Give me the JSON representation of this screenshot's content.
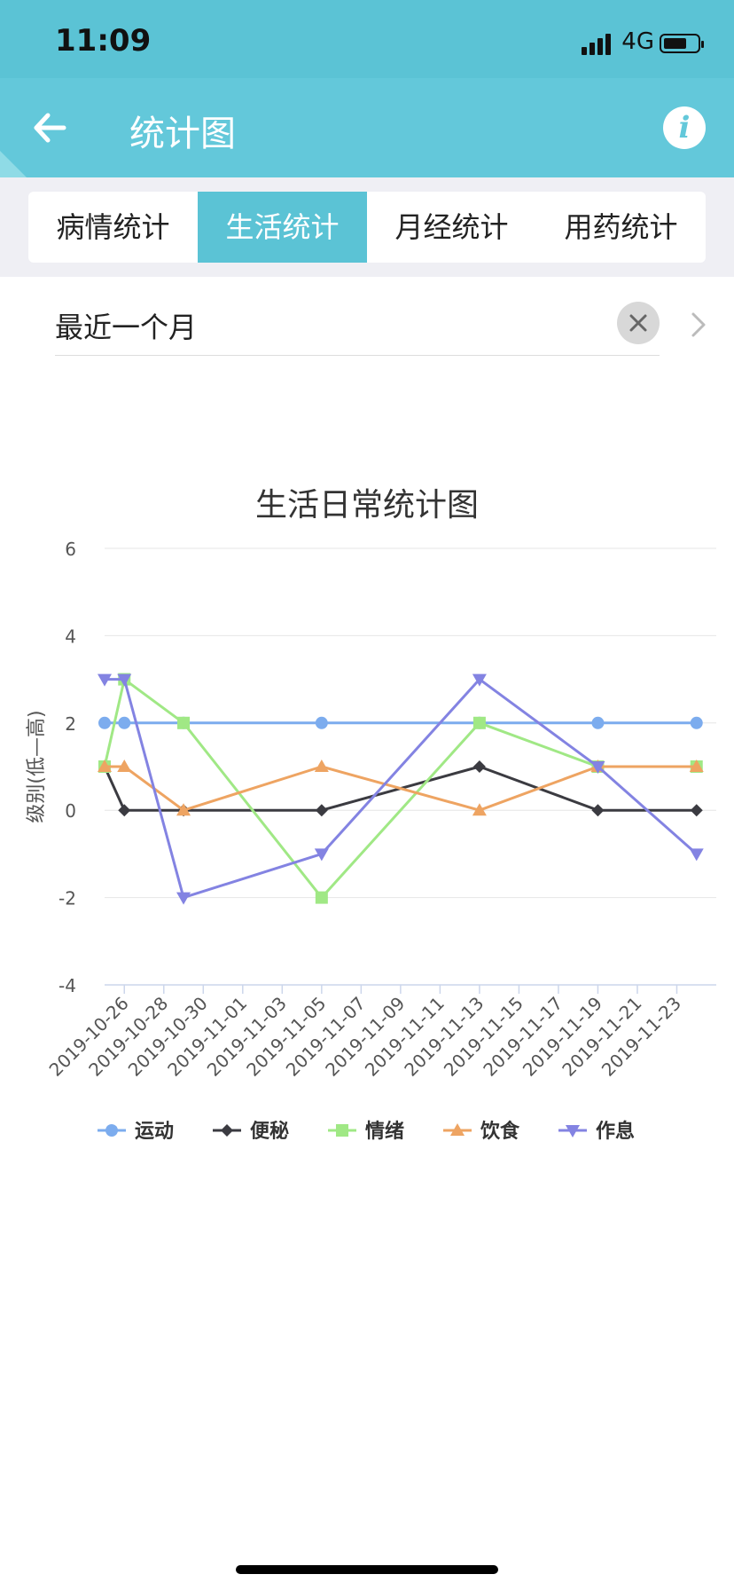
{
  "status": {
    "time": "11:09",
    "network": "4G",
    "battery_level": 0.7
  },
  "nav": {
    "title": "统计图",
    "back_icon": "arrow-left-icon",
    "info_icon": "info-icon",
    "info_glyph": "i"
  },
  "tabs": [
    {
      "label": "病情统计",
      "active": false
    },
    {
      "label": "生活统计",
      "active": true
    },
    {
      "label": "月经统计",
      "active": false
    },
    {
      "label": "用药统计",
      "active": false
    }
  ],
  "filter": {
    "range_label": "最近一个月",
    "clear_icon": "close-icon",
    "more_icon": "chevron-right-icon"
  },
  "colors": {
    "status_bar": "#5bc3d5",
    "nav_bar": "#63c8da",
    "accent": "#5bc3d5"
  },
  "chart_data": {
    "type": "line",
    "title": "生活日常统计图",
    "xlabel": "",
    "ylabel": "级别(低—高)",
    "ylim": [
      -4,
      6
    ],
    "yticks": [
      -4,
      -2,
      0,
      2,
      4,
      6
    ],
    "xlim": [
      "2019-10-25",
      "2019-11-25"
    ],
    "xticks": [
      "2019-10-26",
      "2019-10-28",
      "2019-10-30",
      "2019-11-01",
      "2019-11-03",
      "2019-11-05",
      "2019-11-07",
      "2019-11-09",
      "2019-11-11",
      "2019-11-13",
      "2019-11-15",
      "2019-11-17",
      "2019-11-19",
      "2019-11-21",
      "2019-11-23"
    ],
    "x": [
      "2019-10-25",
      "2019-10-26",
      "2019-10-29",
      "2019-11-05",
      "2019-11-13",
      "2019-11-19",
      "2019-11-24"
    ],
    "grid": true,
    "legend": "bottom",
    "series": [
      {
        "name": "运动",
        "color": "#7cacee",
        "marker": "circle",
        "values": [
          2,
          2,
          2,
          2,
          2,
          2,
          2
        ]
      },
      {
        "name": "便秘",
        "color": "#3b3b41",
        "marker": "diamond",
        "values": [
          1,
          0,
          0,
          0,
          1,
          0,
          0
        ]
      },
      {
        "name": "情绪",
        "color": "#a0e885",
        "marker": "square",
        "values": [
          1,
          3,
          2,
          -2,
          2,
          1,
          1
        ]
      },
      {
        "name": "饮食",
        "color": "#eea462",
        "marker": "triangle",
        "values": [
          1,
          1,
          0,
          1,
          0,
          1,
          1
        ]
      },
      {
        "name": "作息",
        "color": "#8383e2",
        "marker": "triangle-down",
        "values": [
          3,
          3,
          -2,
          -1,
          3,
          1,
          -1
        ]
      }
    ]
  }
}
